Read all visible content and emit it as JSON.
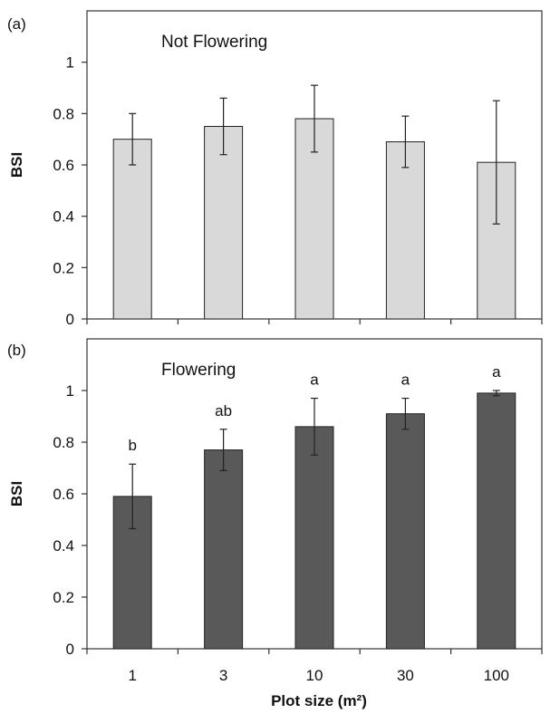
{
  "chart_data": [
    {
      "type": "bar",
      "panel_label": "(a)",
      "title": "Not Flowering",
      "ylabel": "BSI",
      "xlabel": "",
      "categories": [
        "1",
        "3",
        "10",
        "30",
        "100"
      ],
      "values": [
        0.7,
        0.75,
        0.78,
        0.69,
        0.61
      ],
      "errors": [
        0.1,
        0.11,
        0.13,
        0.1,
        0.24
      ],
      "ylim": [
        0,
        1.2
      ],
      "yticks": [
        "0",
        "0.2",
        "0.4",
        "0.6",
        "0.8",
        "1"
      ],
      "bar_color": "#d9d9d9",
      "grid": false,
      "letters": []
    },
    {
      "type": "bar",
      "panel_label": "(b)",
      "title": "Flowering",
      "ylabel": "BSI",
      "xlabel": "Plot size (m²)",
      "categories": [
        "1",
        "3",
        "10",
        "30",
        "100"
      ],
      "values": [
        0.59,
        0.77,
        0.86,
        0.91,
        0.99
      ],
      "errors": [
        0.125,
        0.08,
        0.11,
        0.06,
        0.01
      ],
      "ylim": [
        0,
        1.2
      ],
      "yticks": [
        "0",
        "0.2",
        "0.4",
        "0.6",
        "0.8",
        "1"
      ],
      "bar_color": "#595959",
      "grid": false,
      "letters": [
        "b",
        "ab",
        "a",
        "a",
        "a"
      ]
    }
  ]
}
